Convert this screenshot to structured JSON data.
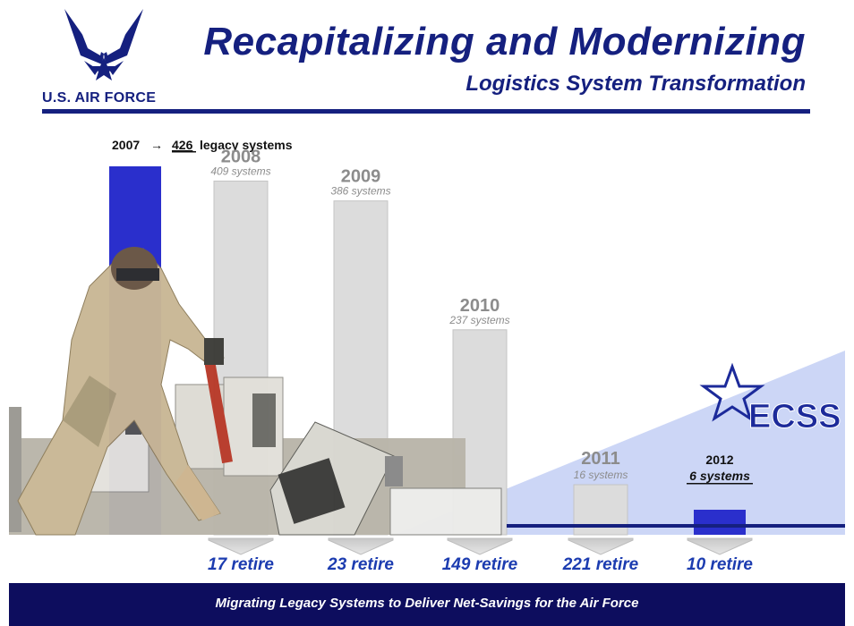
{
  "header": {
    "title": "Recapitalizing and Modernizing",
    "subtitle": "Logistics System Transformation",
    "brand": "U.S. AIR FORCE"
  },
  "footer": {
    "text": "Migrating Legacy Systems to Deliver Net-Savings for the Air Force"
  },
  "ecss_label": "ECSS",
  "colors": {
    "navy": "#15207f",
    "bar_blue": "#2a2fcc",
    "bar_gray": "#dcdcdc",
    "label_gray": "#8c8c8c",
    "retire_blue": "#1c3cb0",
    "wedge": "#c7d2f5"
  },
  "chart_data": {
    "type": "bar",
    "ylim": [
      0,
      426
    ],
    "categories": [
      "2007",
      "2008",
      "2009",
      "2010",
      "2011",
      "2012"
    ],
    "values": [
      426,
      409,
      386,
      237,
      16,
      6
    ],
    "start_label": {
      "year": "2007",
      "arrow": "→",
      "count": "426",
      "suffix": "legacy systems"
    },
    "bar_labels": [
      {
        "year": "2008",
        "systems": "409 systems"
      },
      {
        "year": "2009",
        "systems": "386 systems"
      },
      {
        "year": "2010",
        "systems": "237 systems"
      },
      {
        "year": "2011",
        "systems": "16 systems"
      },
      {
        "year": "2012",
        "systems": "6 systems"
      }
    ],
    "retirements": [
      {
        "value": 17,
        "label": "17 retire"
      },
      {
        "value": 23,
        "label": "23 retire"
      },
      {
        "value": 149,
        "label": "149 retire"
      },
      {
        "value": 221,
        "label": "221 retire"
      },
      {
        "value": 10,
        "label": "10 retire"
      }
    ]
  }
}
